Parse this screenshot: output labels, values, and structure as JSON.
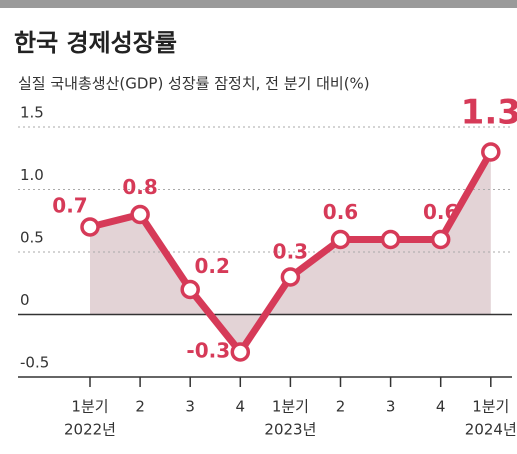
{
  "chart_data": {
    "type": "line",
    "title": "한국 경제성장률",
    "subtitle": "실질 국내총생산(GDP) 성장률 잠정치, 전 분기 대비(%)",
    "categories": [
      "1분기",
      "2",
      "3",
      "4",
      "1분기",
      "2",
      "3",
      "4",
      "1분기"
    ],
    "year_labels": [
      "2022년",
      null,
      null,
      null,
      "2023년",
      null,
      null,
      null,
      "2024년"
    ],
    "values": [
      0.7,
      0.8,
      0.2,
      -0.3,
      0.3,
      0.6,
      0.6,
      0.6,
      1.3
    ],
    "value_labels": [
      "0.7",
      "0.8",
      "0.2",
      "-0.3",
      "0.3",
      "0.6",
      null,
      "0.6",
      "1.3"
    ],
    "color": "#d63a58",
    "area_color": "#e3d3d6",
    "ylim": [
      -0.5,
      1.6
    ],
    "yticks": [
      -0.5,
      0,
      0.5,
      {
        "value": 1,
        "label": "1.0"
      },
      1.5
    ],
    "grid": true
  }
}
